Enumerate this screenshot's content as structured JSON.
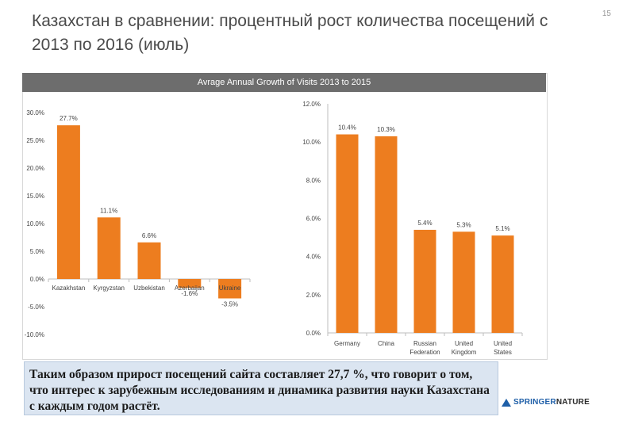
{
  "slide": {
    "title": "Казахстан в сравнении: процентный рост количества посещений с 2013 по 2016 (июль)",
    "page_number": "15"
  },
  "chart_header": "Avrage Annual Growth of Visits 2013 to 2015",
  "chart_data": [
    {
      "type": "bar",
      "categories": [
        "Kazakhstan",
        "Kyrgyzstan",
        "Uzbekistan",
        "Azerbaijan",
        "Ukraine"
      ],
      "values": [
        27.7,
        11.1,
        6.6,
        -1.6,
        -3.5
      ],
      "data_labels": [
        "27.7%",
        "11.1%",
        "6.6%",
        "-1.6%",
        "-3.5%"
      ],
      "ylim": [
        -10,
        30
      ],
      "yticks": [
        "30.0%",
        "25.0%",
        "20.0%",
        "15.0%",
        "10.0%",
        "5.0%",
        "0.0%",
        "-5.0%",
        "-10.0%"
      ],
      "ytick_values": [
        30,
        25,
        20,
        15,
        10,
        5,
        0,
        -5,
        -10
      ],
      "color": "#ed7d1f",
      "grid": false,
      "legend": "none"
    },
    {
      "type": "bar",
      "categories": [
        "Germany",
        "China",
        "Russian Federation",
        "United Kingdom",
        "United States"
      ],
      "category_lines": [
        [
          "Germany"
        ],
        [
          "China"
        ],
        [
          "Russian",
          "Federation"
        ],
        [
          "United",
          "Kingdom"
        ],
        [
          "United",
          "States"
        ]
      ],
      "values": [
        10.4,
        10.3,
        5.4,
        5.3,
        5.1
      ],
      "data_labels": [
        "10.4%",
        "10.3%",
        "5.4%",
        "5.3%",
        "5.1%"
      ],
      "ylim": [
        0,
        12
      ],
      "yticks": [
        "12.0%",
        "10.0%",
        "8.0%",
        "6.0%",
        "4.0%",
        "2.0%",
        "0.0%"
      ],
      "ytick_values": [
        12,
        10,
        8,
        6,
        4,
        2,
        0
      ],
      "color": "#ed7d1f",
      "grid": false,
      "legend": "none"
    }
  ],
  "note": {
    "text": "Таким образом прирост посещений сайта составляет 27,7 %, что говорит о том, что интерес к зарубежным исследованиям и динамика развития науки Казахстана с каждым годом растёт."
  },
  "logo": {
    "part1": "SPRINGER",
    "part2": "NATURE"
  }
}
